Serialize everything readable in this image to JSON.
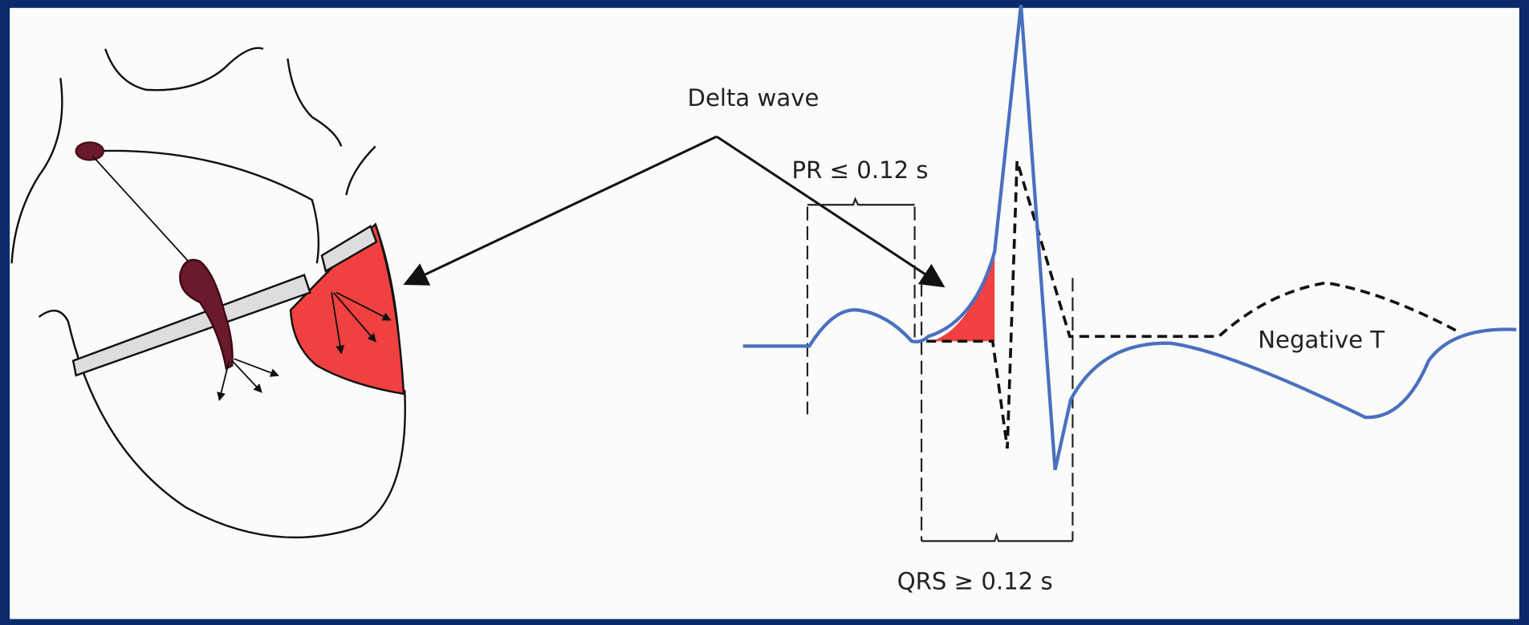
{
  "labels": {
    "delta_wave": "Delta wave",
    "pr": "PR ≤ 0.12 s",
    "qrs": "QRS ≥ 0.12 s",
    "negative_t": "Negative T"
  }
}
